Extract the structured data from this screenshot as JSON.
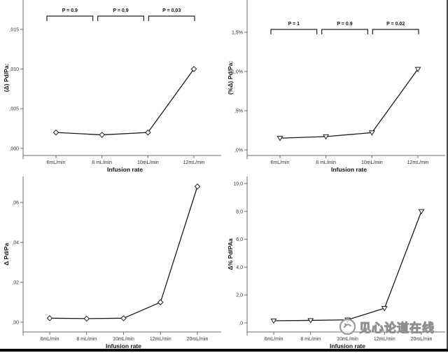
{
  "watermark": {
    "text": "见心论道在线"
  },
  "chart_data": [
    {
      "type": "line",
      "name": "delta-pd-pa-4-rates",
      "title": "",
      "xlabel": "Infusion rate",
      "ylabel": "(Δ) Pd/Pa:",
      "categories": [
        "6mL/min",
        "8 mL/min",
        "10mL/min",
        "12mL/min"
      ],
      "values": [
        0.002,
        0.0017,
        0.002,
        0.01
      ],
      "yticks": {
        "labels": [
          ",000",
          ",005",
          ",010",
          ",015"
        ],
        "values": [
          0,
          0.005,
          0.01,
          0.015
        ]
      },
      "ylim": [
        -0.0009,
        0.0187
      ],
      "marker": "diamond",
      "grid": false,
      "legend": "none",
      "bracket_y": 23,
      "brackets": [
        {
          "label": "P = 0.9",
          "from": 0,
          "to": 1
        },
        {
          "label": "P = 0.9",
          "from": 1,
          "to": 2
        },
        {
          "label": "P = 0.03",
          "from": 2,
          "to": 3
        }
      ]
    },
    {
      "type": "line",
      "name": "pct-delta-pd-pa-4-rates",
      "title": "",
      "xlabel": "Infusion rate",
      "ylabel": "(%Δ) Pd/Pa:",
      "categories": [
        "6mL/min",
        "8 mL/min",
        "10mL/min",
        "12mL/min"
      ],
      "values": [
        0.15,
        0.17,
        0.22,
        1.03
      ],
      "unit": "%",
      "yticks": {
        "labels": [
          ",0%",
          ",5%",
          "1,0%",
          "1,5%"
        ],
        "values": [
          0,
          0.5,
          1.0,
          1.5
        ]
      },
      "ylim": [
        -0.071,
        1.911
      ],
      "marker": "triangle-down",
      "grid": false,
      "legend": "none",
      "bracket_y": 42,
      "brackets": [
        {
          "label": "P = 1",
          "from": 0,
          "to": 1
        },
        {
          "label": "P = 0.9",
          "from": 1,
          "to": 2
        },
        {
          "label": "P = 0.02",
          "from": 2,
          "to": 3
        }
      ]
    },
    {
      "type": "line",
      "name": "delta-pd-pa-5-rates",
      "title": "",
      "xlabel": "Infusion rate",
      "ylabel": "Δ Pd/Pa",
      "categories": [
        "6mL/min",
        "8 mL/min",
        "10mL/min",
        "12mL/min",
        "20mL/min"
      ],
      "values": [
        0.002,
        0.0018,
        0.002,
        0.01,
        0.068
      ],
      "yticks": {
        "labels": [
          ",00",
          ",02",
          ",04",
          ",06"
        ],
        "values": [
          0,
          0.02,
          0.04,
          0.06
        ]
      },
      "ylim": [
        -0.0049,
        0.073
      ],
      "marker": "diamond",
      "grid": false,
      "legend": "none",
      "brackets": []
    },
    {
      "type": "line",
      "name": "pct-delta-pd-paa-5-rates",
      "title": "",
      "xlabel": "Infusion rate",
      "ylabel": "Δ% Pd/PAa",
      "categories": [
        "6mL/min",
        "8 mL/min",
        "10mL/min",
        "12mL/min",
        "20mL/min"
      ],
      "values": [
        0.15,
        0.18,
        0.22,
        1.05,
        8.0
      ],
      "yticks": {
        "labels": [
          ",0",
          "2,0",
          "4,0",
          "6,0",
          "8,0",
          "10,0"
        ],
        "values": [
          0,
          2,
          4,
          6,
          8,
          10
        ]
      },
      "ylim": [
        -0.653,
        10.5
      ],
      "marker": "triangle-down",
      "grid": false,
      "legend": "none",
      "brackets": []
    }
  ]
}
